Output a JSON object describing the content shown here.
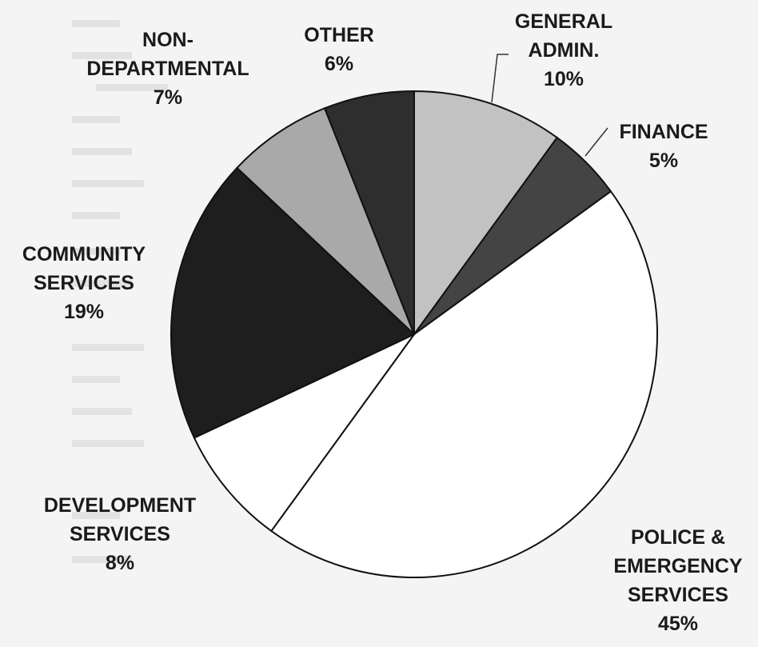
{
  "chart_data": {
    "type": "pie",
    "slices": [
      {
        "label_lines": [
          "GENERAL",
          "ADMIN."
        ],
        "pct_label": "10%",
        "value": 10,
        "color": "#c2c2c2",
        "leader": true
      },
      {
        "label_lines": [
          "FINANCE"
        ],
        "pct_label": "5%",
        "value": 5,
        "color": "#444444",
        "leader": true
      },
      {
        "label_lines": [
          "POLICE &",
          "EMERGENCY",
          "SERVICES"
        ],
        "pct_label": "45%",
        "value": 45,
        "color": "#ffffff",
        "leader": false
      },
      {
        "label_lines": [
          "DEVELOPMENT",
          "SERVICES"
        ],
        "pct_label": "8%",
        "value": 8,
        "color": "#ffffff",
        "leader": false
      },
      {
        "label_lines": [
          "COMMUNITY",
          "SERVICES"
        ],
        "pct_label": "19%",
        "value": 19,
        "color": "#1e1e1e",
        "leader": false
      },
      {
        "label_lines": [
          "NON-",
          "DEPARTMENTAL"
        ],
        "pct_label": "7%",
        "value": 7,
        "color": "#a9a9a9",
        "leader": false
      },
      {
        "label_lines": [
          "OTHER"
        ],
        "pct_label": "6%",
        "value": 6,
        "color": "#2e2e2e",
        "leader": false
      }
    ],
    "start_angle_deg": 0,
    "direction": "clockwise",
    "legend": "none",
    "grid": false
  }
}
